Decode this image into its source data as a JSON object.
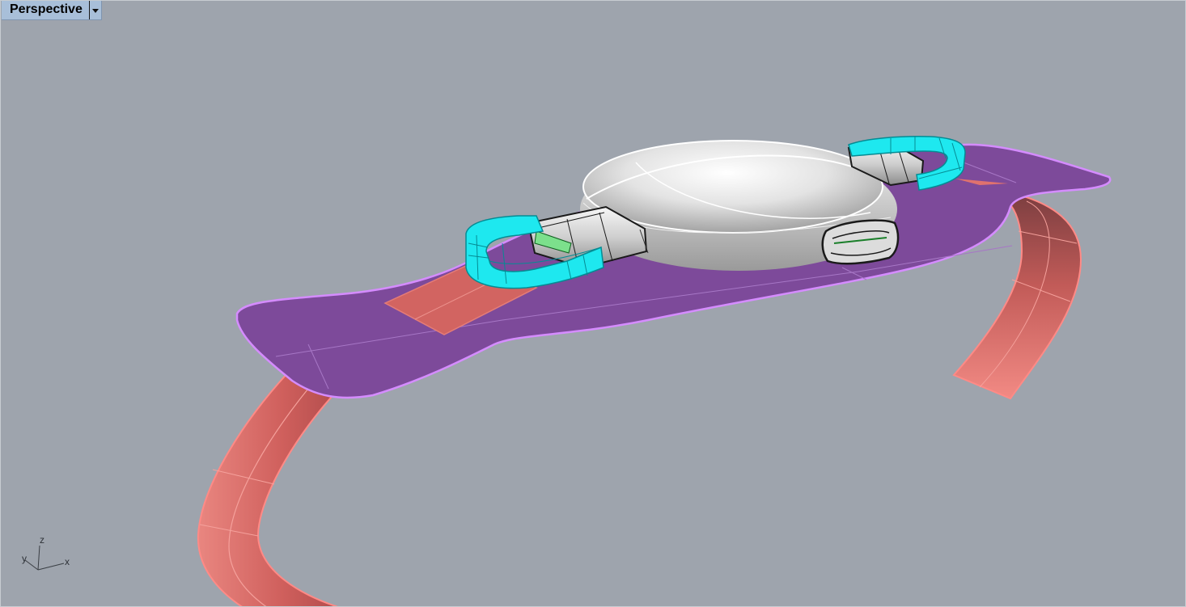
{
  "viewport": {
    "title": "Perspective",
    "menu_icon": "chevron-down-icon",
    "background": "#9ea4ad"
  },
  "axes": {
    "x": "x",
    "y": "y",
    "z": "z"
  },
  "model": {
    "band_color": "#7d4a9a",
    "band_edge_color": "#d58cff",
    "strap_color": "#e0726e",
    "connector_color": "#16e5ec",
    "body_color": "#d8d8d8"
  }
}
